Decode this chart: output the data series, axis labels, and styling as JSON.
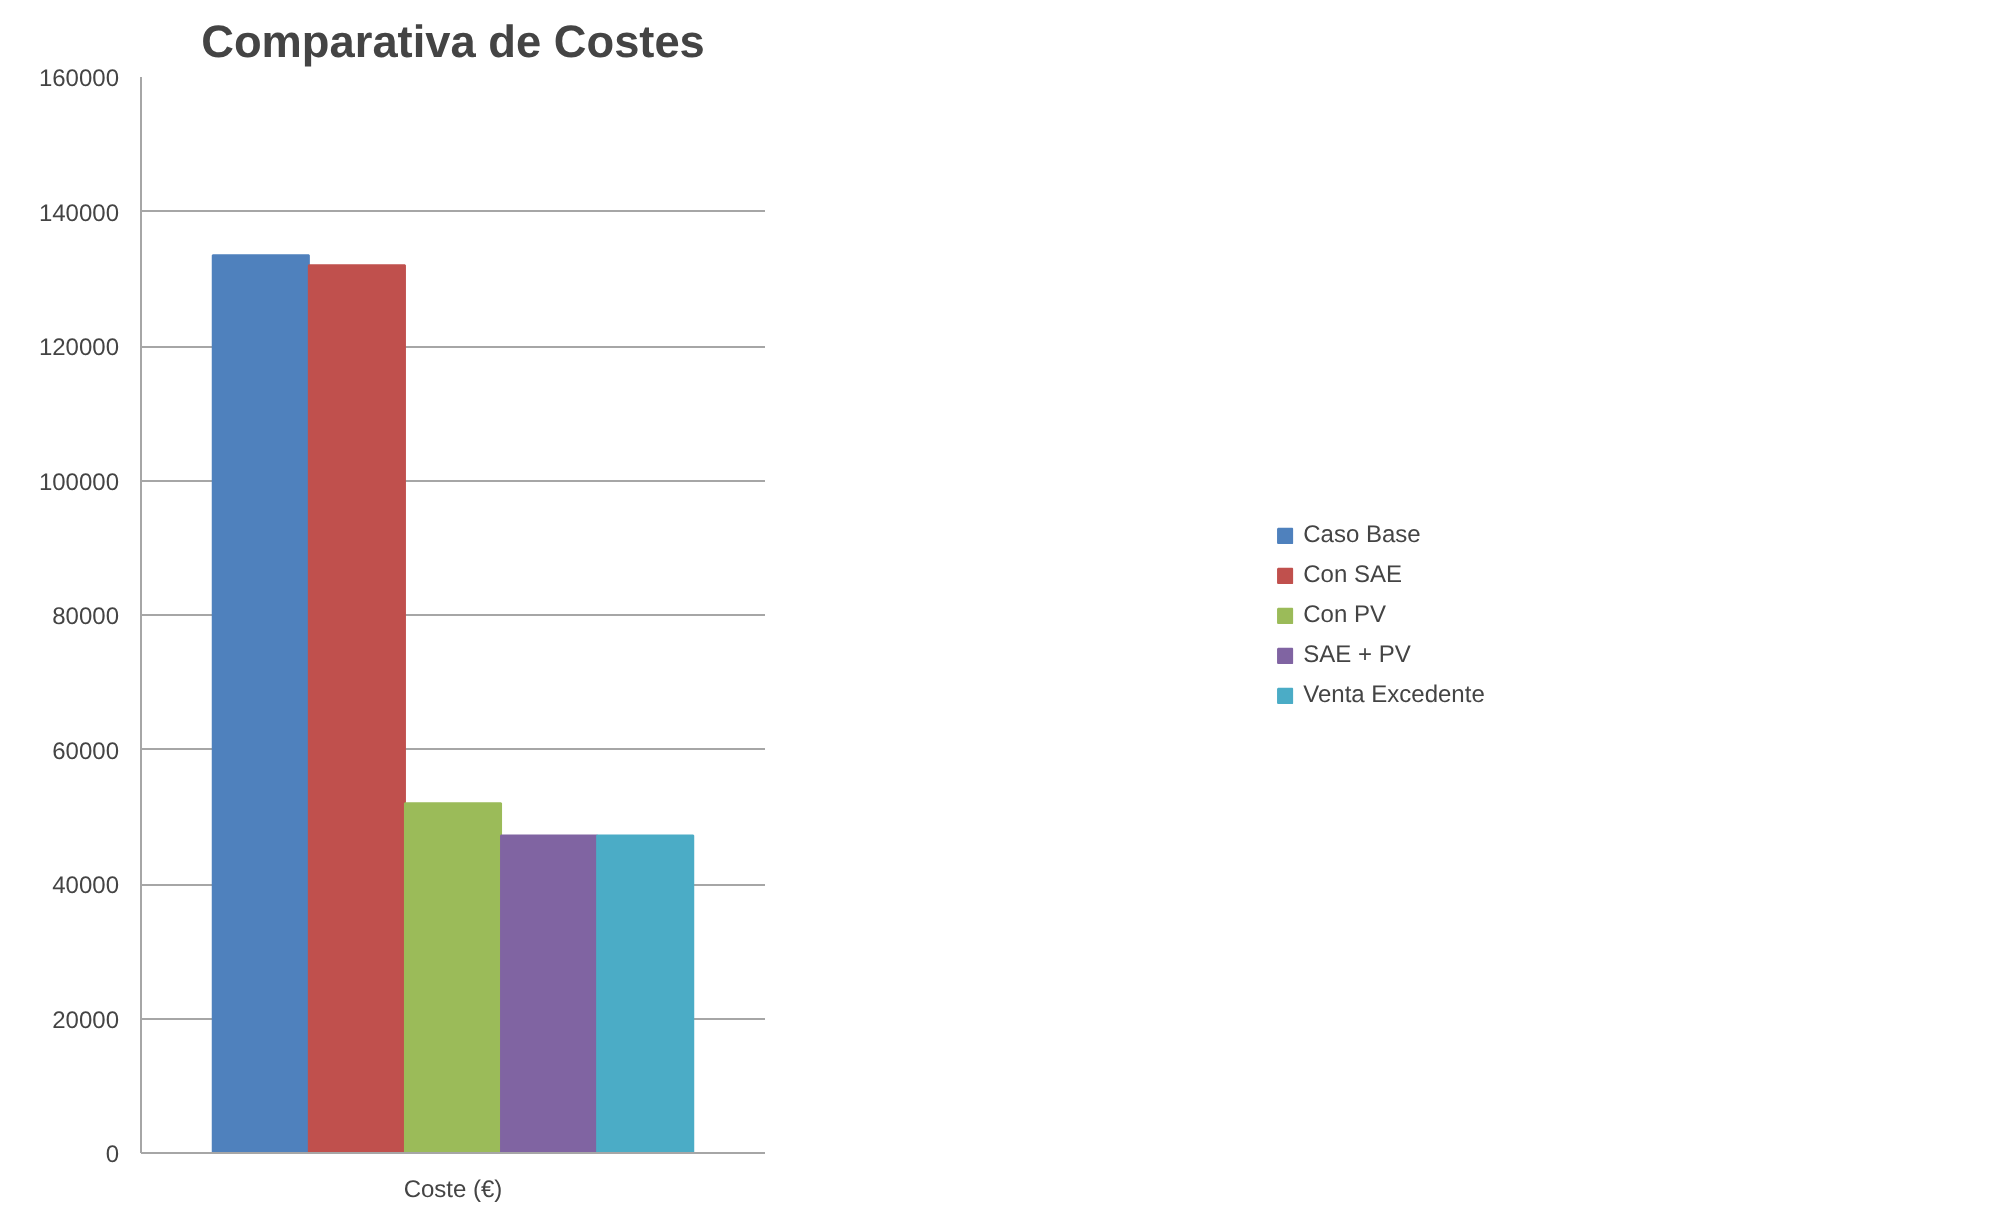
{
  "chart_data": {
    "type": "bar",
    "title": "Comparativa de Costes",
    "categories": [
      "Coste (€)"
    ],
    "series": [
      {
        "name": "Caso Base",
        "color": "#4f81bd",
        "values": [
          133500
        ]
      },
      {
        "name": "Con SAE",
        "color": "#c0504d",
        "values": [
          132000
        ]
      },
      {
        "name": "Con PV",
        "color": "#9bbb59",
        "values": [
          52000
        ]
      },
      {
        "name": "SAE + PV",
        "color": "#8064a2",
        "values": [
          47200
        ]
      },
      {
        "name": "Venta Excedente",
        "color": "#4bacc6",
        "values": [
          47200
        ]
      }
    ],
    "ylim": [
      0,
      160000
    ],
    "yticks": [
      0,
      20000,
      40000,
      60000,
      80000,
      100000,
      120000,
      140000,
      160000
    ],
    "grid": "y",
    "legend": "right"
  }
}
